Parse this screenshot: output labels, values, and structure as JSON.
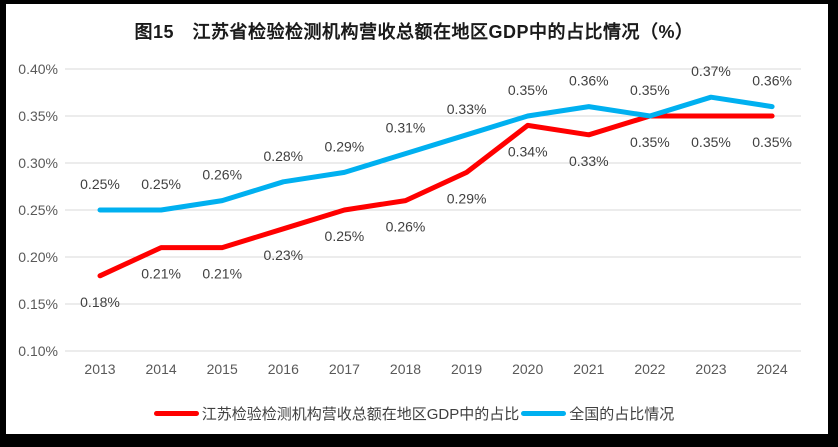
{
  "title": "图15　江苏省检验检测机构营收总额在地区GDP中的占比情况（%）",
  "chart_data": {
    "type": "line",
    "categories": [
      "2013",
      "2014",
      "2015",
      "2016",
      "2017",
      "2018",
      "2019",
      "2020",
      "2021",
      "2022",
      "2023",
      "2024"
    ],
    "series": [
      {
        "name": "江苏检验检测机构营收总额在地区GDP中的占比",
        "color": "#ff0000",
        "values": [
          0.18,
          0.21,
          0.21,
          0.23,
          0.25,
          0.26,
          0.29,
          0.34,
          0.33,
          0.35,
          0.35,
          0.35
        ],
        "data_labels": [
          "0.18%",
          "0.21%",
          "0.21%",
          "0.23%",
          "0.25%",
          "0.26%",
          "0.29%",
          "0.34%",
          "0.33%",
          "0.35%",
          "0.35%",
          "0.35%"
        ],
        "label_position": "below"
      },
      {
        "name": "全国的占比情况",
        "color": "#00b0f0",
        "values": [
          0.25,
          0.25,
          0.26,
          0.28,
          0.29,
          0.31,
          0.33,
          0.35,
          0.36,
          0.35,
          0.37,
          0.36
        ],
        "data_labels": [
          "0.25%",
          "0.25%",
          "0.26%",
          "0.28%",
          "0.29%",
          "0.31%",
          "0.33%",
          "0.35%",
          "0.36%",
          "0.35%",
          "0.37%",
          "0.36%"
        ],
        "label_position": "above"
      }
    ],
    "y_axis": {
      "tick_labels": [
        "0.40%",
        "0.35%",
        "0.30%",
        "0.25%",
        "0.20%",
        "0.15%",
        "0.10%"
      ],
      "max": 0.4,
      "min": 0.1,
      "step": 0.05
    },
    "xlabel": "",
    "ylabel": "",
    "grid": true,
    "legend_position": "bottom"
  },
  "colors": {
    "jiangsu_line": "#ff0000",
    "national_line": "#00b0f0",
    "gridline": "#d9d9d9",
    "axis_text": "#595959",
    "data_label_text": "#404040",
    "title_text": "#1a1a1a",
    "frame": "#000000",
    "background": "#ffffff"
  }
}
